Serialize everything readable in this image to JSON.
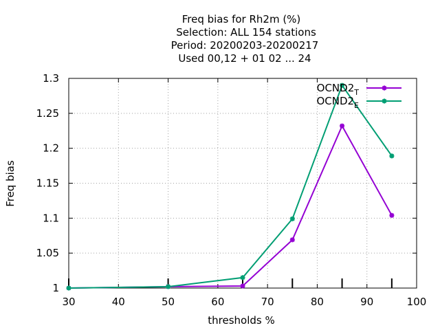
{
  "chart_data": {
    "type": "line",
    "title_lines": [
      "Freq bias  for Rh2m (%)",
      "Selection: ALL    154 stations",
      "Period: 20200203-20200217",
      "Used  00,12  + 01 02 ... 24"
    ],
    "xlabel": "thresholds %",
    "ylabel": "Freq bias",
    "xlim": [
      30,
      100
    ],
    "ylim": [
      1,
      1.3
    ],
    "x_ticks": [
      30,
      40,
      50,
      60,
      70,
      80,
      90,
      100
    ],
    "y_ticks": [
      1,
      1.05,
      1.1,
      1.15,
      1.2,
      1.25,
      1.3
    ],
    "x_tick_labels": [
      "30",
      "40",
      "50",
      "60",
      "70",
      "80",
      "90",
      "100"
    ],
    "y_tick_labels": [
      "1",
      "1.05",
      "1.1",
      "1.15",
      "1.2",
      "1.25",
      "1.3"
    ],
    "grid": true,
    "legend_position": "top-right",
    "data_x_marks": [
      30,
      50,
      65,
      75,
      85,
      95
    ],
    "series": [
      {
        "name": "OCND2",
        "subscript": "T",
        "color": "#9400d3",
        "x": [
          30,
          50,
          65,
          75,
          85,
          95
        ],
        "y": [
          1.0,
          1.002,
          1.003,
          1.069,
          1.232,
          1.104
        ]
      },
      {
        "name": "OCND2",
        "subscript": "E",
        "color": "#009e73",
        "x": [
          30,
          50,
          65,
          75,
          85,
          95
        ],
        "y": [
          1.0,
          1.002,
          1.015,
          1.099,
          1.29,
          1.189
        ]
      }
    ]
  }
}
